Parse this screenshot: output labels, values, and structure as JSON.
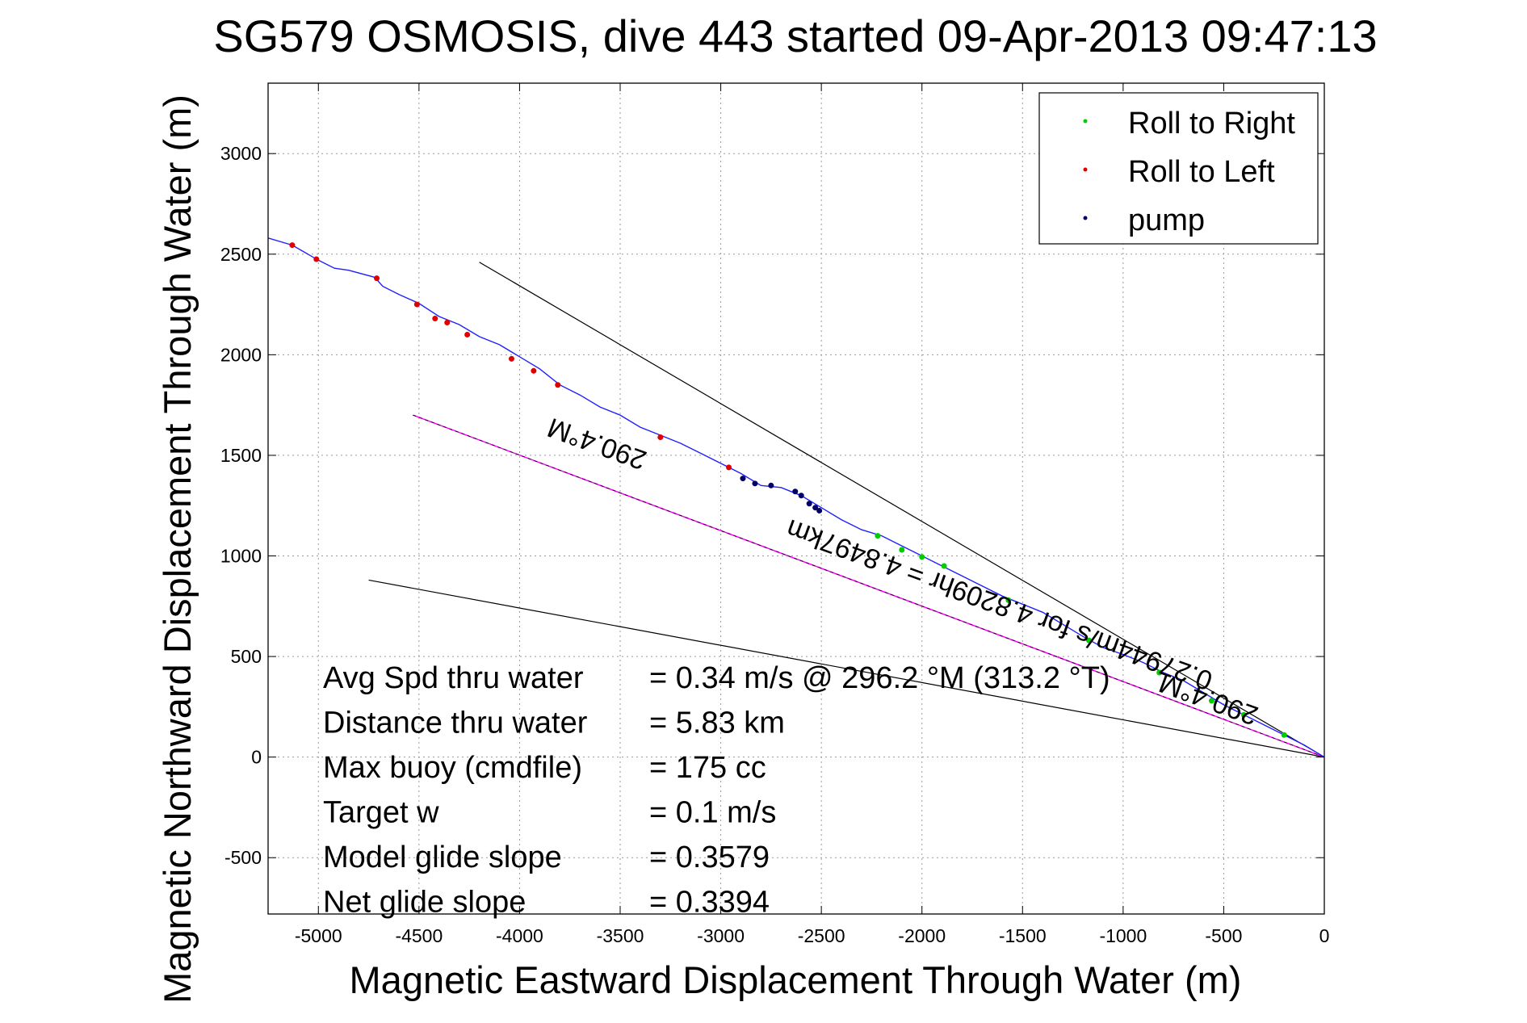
{
  "colors": {
    "track": "#2020ff",
    "roll_right": "#00cc00",
    "roll_left": "#e00000",
    "pump": "#000066",
    "magenta": "#ff00ff",
    "axis": "#000000",
    "grid": "#9a9a9a"
  },
  "chart_data": {
    "type": "line",
    "title": "SG579 OSMOSIS, dive 443 started 09-Apr-2013 09:47:13",
    "xlabel": "Magnetic Eastward Displacement Through Water (m)",
    "ylabel": "Magnetic Northward Displacement Through Water (m)",
    "xlim": [
      -5250,
      0
    ],
    "ylim": [
      -780,
      3350
    ],
    "grid": true,
    "legend_position": "top-right",
    "xticks": [
      -5000,
      -4500,
      -4000,
      -3500,
      -3000,
      -2500,
      -2000,
      -1500,
      -1000,
      -500,
      0
    ],
    "yticks": [
      -500,
      0,
      500,
      1000,
      1500,
      2000,
      2500,
      3000
    ],
    "legend": [
      {
        "label": "Roll to Right",
        "color_key": "roll_right"
      },
      {
        "label": "Roll to Left",
        "color_key": "roll_left"
      },
      {
        "label": "pump",
        "color_key": "pump"
      }
    ],
    "track": [
      [
        -5250,
        2580
      ],
      [
        -5130,
        2545
      ],
      [
        -5000,
        2470
      ],
      [
        -4920,
        2430
      ],
      [
        -4850,
        2420
      ],
      [
        -4720,
        2385
      ],
      [
        -4680,
        2340
      ],
      [
        -4600,
        2300
      ],
      [
        -4500,
        2255
      ],
      [
        -4400,
        2190
      ],
      [
        -4300,
        2150
      ],
      [
        -4200,
        2090
      ],
      [
        -4100,
        2050
      ],
      [
        -4000,
        1990
      ],
      [
        -3900,
        1930
      ],
      [
        -3800,
        1850
      ],
      [
        -3700,
        1800
      ],
      [
        -3600,
        1740
      ],
      [
        -3500,
        1700
      ],
      [
        -3400,
        1640
      ],
      [
        -3300,
        1600
      ],
      [
        -3200,
        1560
      ],
      [
        -3100,
        1510
      ],
      [
        -3000,
        1460
      ],
      [
        -2900,
        1410
      ],
      [
        -2800,
        1350
      ],
      [
        -2700,
        1340
      ],
      [
        -2600,
        1300
      ],
      [
        -2500,
        1240
      ],
      [
        -2400,
        1180
      ],
      [
        -2300,
        1130
      ],
      [
        -2200,
        1100
      ],
      [
        -2100,
        1050
      ],
      [
        -2000,
        1000
      ],
      [
        -1900,
        950
      ],
      [
        -1800,
        900
      ],
      [
        -1700,
        850
      ],
      [
        -1600,
        800
      ],
      [
        -1500,
        760
      ],
      [
        -1400,
        720
      ],
      [
        -1300,
        660
      ],
      [
        -1200,
        600
      ],
      [
        -1100,
        545
      ],
      [
        -1000,
        510
      ],
      [
        -900,
        470
      ],
      [
        -800,
        420
      ],
      [
        -700,
        380
      ],
      [
        -600,
        320
      ],
      [
        -500,
        260
      ],
      [
        -400,
        210
      ],
      [
        -300,
        160
      ],
      [
        -200,
        110
      ],
      [
        -100,
        60
      ],
      [
        0,
        0
      ]
    ],
    "roll_right_points": [
      [
        -2220,
        1100
      ],
      [
        -2100,
        1030
      ],
      [
        -2000,
        995
      ],
      [
        -1890,
        950
      ],
      [
        -1570,
        780
      ],
      [
        -1170,
        580
      ],
      [
        -820,
        420
      ],
      [
        -560,
        280
      ],
      [
        -400,
        210
      ],
      [
        -200,
        110
      ]
    ],
    "roll_left_points": [
      [
        -5130,
        2545
      ],
      [
        -5010,
        2475
      ],
      [
        -4710,
        2380
      ],
      [
        -4510,
        2250
      ],
      [
        -4420,
        2180
      ],
      [
        -4360,
        2160
      ],
      [
        -4260,
        2100
      ],
      [
        -4040,
        1980
      ],
      [
        -3930,
        1920
      ],
      [
        -3810,
        1850
      ],
      [
        -3300,
        1590
      ],
      [
        -2960,
        1440
      ]
    ],
    "pump_points": [
      [
        -2890,
        1385
      ],
      [
        -2830,
        1360
      ],
      [
        -2750,
        1350
      ],
      [
        -2630,
        1320
      ],
      [
        -2600,
        1300
      ],
      [
        -2560,
        1260
      ],
      [
        -2530,
        1240
      ],
      [
        -2510,
        1225
      ]
    ],
    "magenta_line": [
      [
        -4530,
        1700
      ],
      [
        0,
        0
      ]
    ],
    "reference_lines": [
      [
        [
          -4200,
          2460
        ],
        [
          0,
          0
        ]
      ],
      [
        [
          -4750,
          880
        ],
        [
          0,
          0
        ]
      ]
    ],
    "annotations": [
      {
        "text": "290.4°M",
        "x": -3600,
        "y": 1600,
        "rotation": 200
      },
      {
        "text": "0.27944m/s for 4.8209hr = 4.8497km",
        "x": -1600,
        "y": 800,
        "rotation": 200
      },
      {
        "text": "290.4°M",
        "x": -560,
        "y": 330,
        "rotation": 200
      }
    ],
    "stats": [
      {
        "label": "Avg Spd thru water",
        "value": "=  0.34 m/s @ 296.2 °M (313.2 °T)"
      },
      {
        "label": "Distance thru water",
        "value": "=  5.83 km"
      },
      {
        "label": "Max buoy (cmdfile)",
        "value": "= 175 cc"
      },
      {
        "label": "Target w",
        "value": "= 0.1 m/s"
      },
      {
        "label": "Model glide slope",
        "value": "= 0.3579"
      },
      {
        "label": "Net glide slope",
        "value": "= 0.3394"
      }
    ]
  }
}
